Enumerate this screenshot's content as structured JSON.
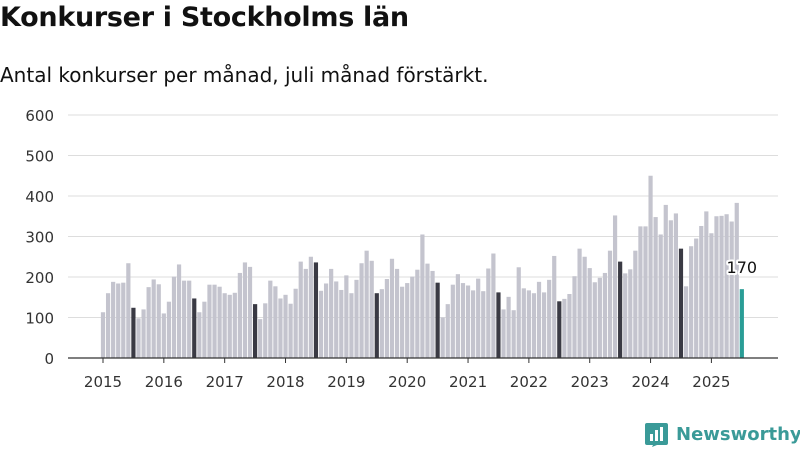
{
  "title": "Konkurser i Stockholms län",
  "subtitle": "Antal konkurser per månad, juli månad förstärkt.",
  "brand": {
    "name": "Newsworthy",
    "logo_icon": "bar-chart-logo-icon"
  },
  "colors": {
    "bar": "#c4c4ce",
    "highlight": "#3a3a44",
    "latest": "#2a9d96",
    "grid": "#dddddd",
    "axis": "#333333",
    "brand": "#3a9a98"
  },
  "chart_data": {
    "type": "bar",
    "title": "Konkurser i Stockholms län",
    "subtitle": "Antal konkurser per månad, juli månad förstärkt.",
    "xlabel": "",
    "ylabel": "",
    "ylim": [
      0,
      600
    ],
    "yticks": [
      0,
      100,
      200,
      300,
      400,
      500,
      600
    ],
    "xticks": [
      "2015",
      "2016",
      "2017",
      "2018",
      "2019",
      "2020",
      "2021",
      "2022",
      "2023",
      "2024",
      "2025"
    ],
    "grid": true,
    "highlight_month": "juli",
    "series": [
      {
        "year": "2015",
        "values": [
          113,
          160,
          188,
          184,
          186,
          234,
          124,
          98,
          120,
          175,
          194,
          182
        ]
      },
      {
        "year": "2016",
        "values": [
          110,
          139,
          201,
          231,
          191,
          191,
          147,
          113,
          139,
          181,
          181,
          176
        ]
      },
      {
        "year": "2017",
        "values": [
          160,
          156,
          161,
          210,
          236,
          225,
          133,
          96,
          135,
          191,
          177,
          147
        ]
      },
      {
        "year": "2018",
        "values": [
          156,
          134,
          171,
          238,
          220,
          250,
          236,
          166,
          184,
          220,
          189,
          168
        ]
      },
      {
        "year": "2019",
        "values": [
          204,
          160,
          193,
          234,
          265,
          240,
          160,
          170,
          195,
          245,
          220,
          176
        ]
      },
      {
        "year": "2020",
        "values": [
          185,
          201,
          218,
          305,
          233,
          215,
          186,
          100,
          133,
          181,
          207,
          185
        ]
      },
      {
        "year": "2021",
        "values": [
          179,
          167,
          196,
          165,
          221,
          258,
          162,
          120,
          151,
          118,
          224,
          172
        ]
      },
      {
        "year": "2022",
        "values": [
          167,
          160,
          188,
          162,
          193,
          252,
          140,
          146,
          158,
          202,
          270,
          250
        ]
      },
      {
        "year": "2023",
        "values": [
          222,
          187,
          198,
          210,
          265,
          352,
          238,
          209,
          219,
          265,
          325,
          325
        ]
      },
      {
        "year": "2024",
        "values": [
          450,
          348,
          305,
          378,
          340,
          357,
          270,
          177,
          276,
          295,
          326,
          362
        ]
      },
      {
        "year": "2025",
        "values": [
          308,
          350,
          351,
          355,
          337,
          383,
          170
        ]
      }
    ],
    "latest_label": "170"
  }
}
